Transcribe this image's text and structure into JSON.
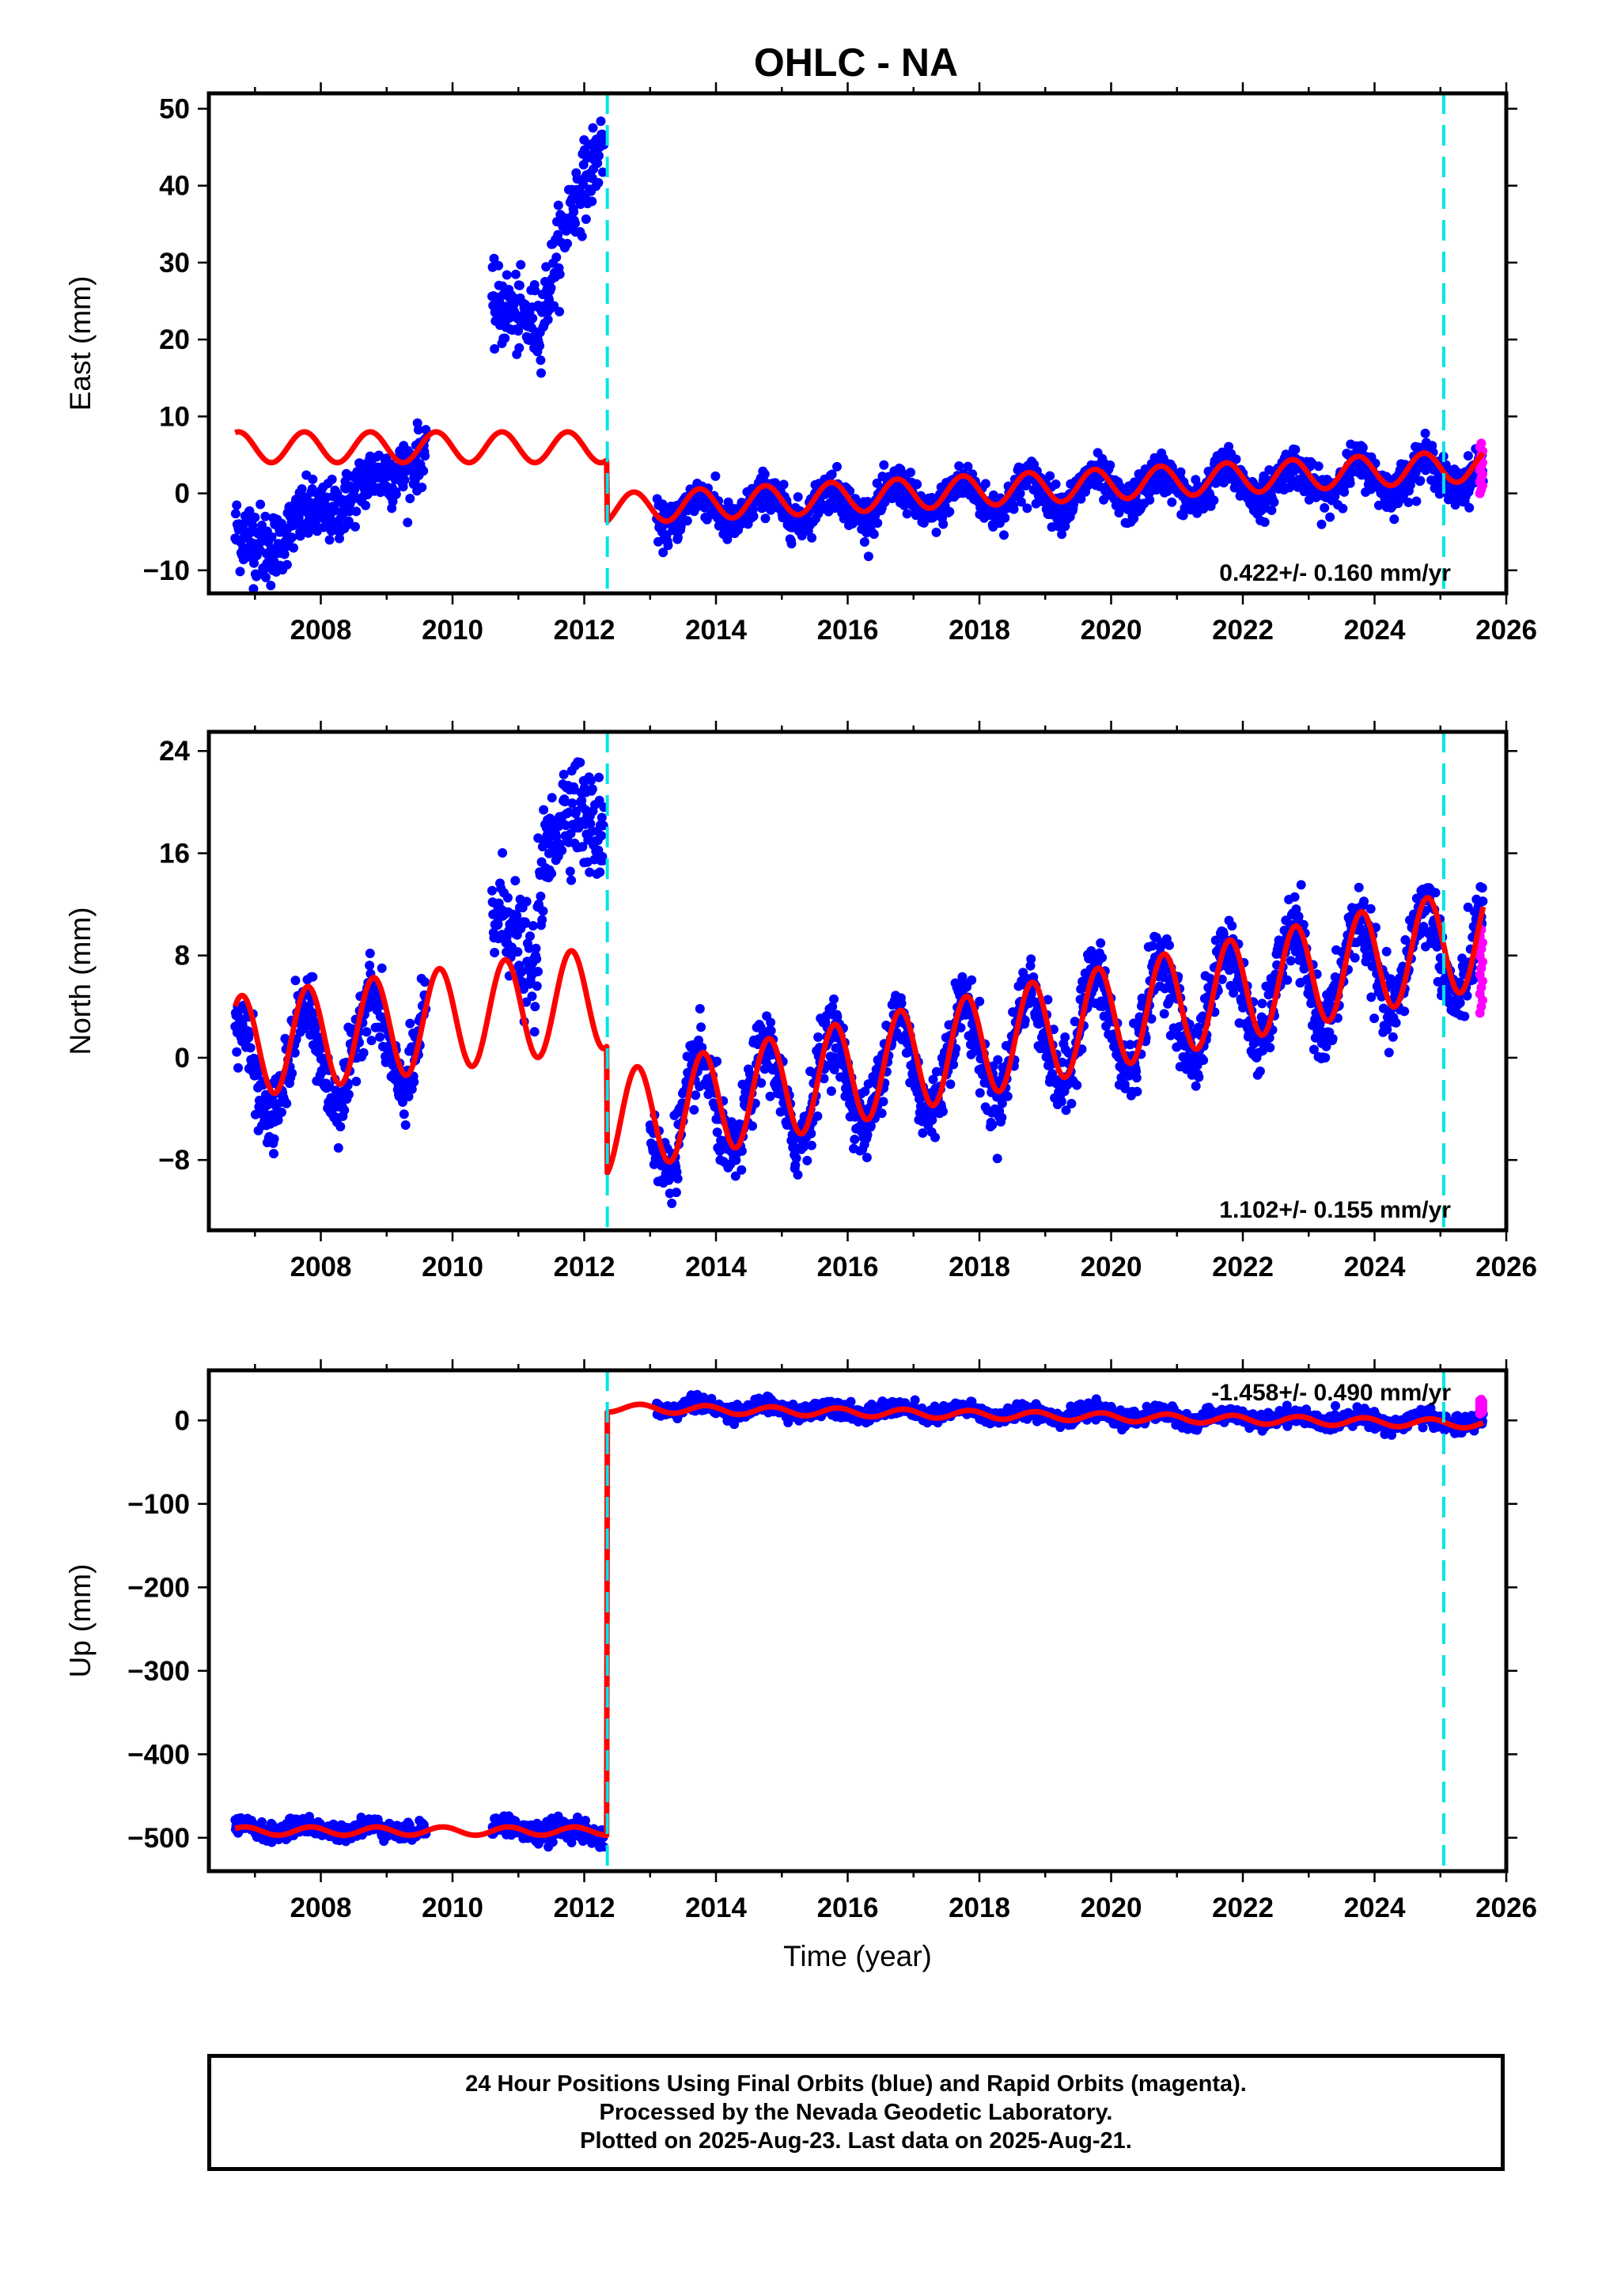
{
  "figure": {
    "title": "OHLC - NA",
    "caption": [
      "24 Hour Positions Using Final Orbits (blue) and Rapid Orbits (magenta).",
      "Processed by the Nevada Geodetic Laboratory.",
      "Plotted on 2025-Aug-23. Last data on 2025-Aug-21."
    ],
    "colors": {
      "final_orbits": "#0000ff",
      "rapid_orbits": "#ff00ff",
      "model": "#ff0000",
      "steps": "#00e5e5"
    }
  },
  "chart_data": [
    {
      "type": "scatter",
      "component": "East",
      "ylabel": "East (mm)",
      "xlabel": "",
      "xlim": [
        2006.3,
        2026.0
      ],
      "ylim": [
        -13,
        52
      ],
      "x_ticks": [
        2008,
        2010,
        2012,
        2014,
        2016,
        2018,
        2020,
        2022,
        2024,
        2026
      ],
      "y_ticks": [
        -10,
        0,
        10,
        20,
        30,
        40,
        50
      ],
      "y_tick_labels": [
        "−10",
        "0",
        "10",
        "20",
        "30",
        "40",
        "50"
      ],
      "rate_label": "0.422+/- 0.160 mm/yr",
      "rate_position": "bottom-right",
      "step_epochs": [
        2012.35,
        2025.05
      ],
      "model": {
        "segments": [
          {
            "start": 2006.7,
            "end": 2012.35,
            "v0": 6.0,
            "rate": 0.0,
            "amp": 2.0,
            "phase": 0.5
          },
          {
            "start": 2012.35,
            "end": 2025.65,
            "v0": -2.0,
            "rate": 0.422,
            "amp": 2.0,
            "phase": 0.5
          }
        ]
      },
      "final_orbits": {
        "segments": [
          {
            "start": 2006.7,
            "end": 2007.3,
            "v0": -6.0,
            "rate": 0.0,
            "amp": 1.0,
            "noise": 2.5
          },
          {
            "start": 2007.3,
            "end": 2009.6,
            "v0": -6.0,
            "rate": 5.0,
            "amp": 1.0,
            "noise": 2.0
          },
          {
            "start": 2010.6,
            "end": 2011.3,
            "v0": 23.0,
            "rate": 0.0,
            "amp": 1.0,
            "noise": 2.5
          },
          {
            "start": 2011.3,
            "end": 2012.3,
            "v0": 23.0,
            "rate": 25.0,
            "amp": 1.5,
            "noise": 2.5
          },
          {
            "start": 2013.1,
            "end": 2025.65,
            "v0": -2.5,
            "rate": 0.422,
            "amp": 2.0,
            "noise": 1.3
          }
        ]
      },
      "rapid_orbits": {
        "start": 2025.6,
        "end": 2025.64,
        "min": 0.0,
        "max": 6.5
      }
    },
    {
      "type": "scatter",
      "component": "North",
      "ylabel": "North (mm)",
      "xlabel": "",
      "xlim": [
        2006.3,
        2026.0
      ],
      "ylim": [
        -13.5,
        25.5
      ],
      "x_ticks": [
        2008,
        2010,
        2012,
        2014,
        2016,
        2018,
        2020,
        2022,
        2024,
        2026
      ],
      "y_ticks": [
        -8,
        0,
        8,
        16,
        24
      ],
      "y_tick_labels": [
        "−8",
        "0",
        "8",
        "16",
        "24"
      ],
      "rate_label": "1.102+/- 0.155 mm/yr",
      "rate_position": "bottom-right",
      "step_epochs": [
        2012.35,
        2025.05
      ],
      "model": {
        "segments": [
          {
            "start": 2006.7,
            "end": 2012.35,
            "v0": 0.8,
            "rate": 0.7,
            "amp": 4.0,
            "phase": 0.55
          },
          {
            "start": 2012.35,
            "end": 2025.65,
            "v0": -5.2,
            "rate": 1.102,
            "amp": 4.0,
            "phase": 0.55
          }
        ]
      },
      "final_orbits": {
        "segments": [
          {
            "start": 2006.7,
            "end": 2009.6,
            "v0": -1.5,
            "rate": 1.2,
            "amp": 4.0,
            "noise": 1.4
          },
          {
            "start": 2010.6,
            "end": 2011.3,
            "v0": 9.0,
            "rate": 0.0,
            "amp": 2.5,
            "noise": 2.0
          },
          {
            "start": 2011.3,
            "end": 2012.3,
            "v0": 16.0,
            "rate": 4.0,
            "amp": 2.0,
            "noise": 2.0
          },
          {
            "start": 2013.0,
            "end": 2025.65,
            "v0": -5.0,
            "rate": 1.102,
            "amp": 4.0,
            "noise": 1.4
          }
        ]
      },
      "rapid_orbits": {
        "start": 2025.6,
        "end": 2025.64,
        "min": 3.5,
        "max": 10.0
      }
    },
    {
      "type": "scatter",
      "component": "Up",
      "ylabel": "Up (mm)",
      "xlabel": "Time (year)",
      "xlim": [
        2006.3,
        2026.0
      ],
      "ylim": [
        -540,
        60
      ],
      "x_ticks": [
        2008,
        2010,
        2012,
        2014,
        2016,
        2018,
        2020,
        2022,
        2024,
        2026
      ],
      "y_ticks": [
        -500,
        -400,
        -300,
        -200,
        -100,
        0
      ],
      "y_tick_labels": [
        "−500",
        "−400",
        "−300",
        "−200",
        "−100",
        "0"
      ],
      "rate_label": "-1.458+/- 0.490 mm/yr",
      "rate_position": "top-right",
      "step_epochs": [
        2012.35,
        2025.05
      ],
      "model": {
        "segments": [
          {
            "start": 2006.7,
            "end": 2012.35,
            "v0": -492.0,
            "rate": 0.0,
            "amp": 5.0,
            "phase": 0.6
          },
          {
            "start": 2012.35,
            "end": 2025.65,
            "v0": 15.0,
            "rate": -1.458,
            "amp": 5.0,
            "phase": 0.6
          }
        ]
      },
      "final_orbits": {
        "segments": [
          {
            "start": 2006.7,
            "end": 2009.6,
            "v0": -490.0,
            "rate": 0.0,
            "amp": 5.0,
            "noise": 5.0
          },
          {
            "start": 2010.6,
            "end": 2012.3,
            "v0": -488.0,
            "rate": -4.0,
            "amp": 5.0,
            "noise": 6.0
          },
          {
            "start": 2013.1,
            "end": 2025.65,
            "v0": 16.0,
            "rate": -1.458,
            "amp": 5.0,
            "noise": 4.5
          }
        ]
      },
      "rapid_orbits": {
        "start": 2025.6,
        "end": 2025.64,
        "min": 8.0,
        "max": 25.0
      }
    }
  ]
}
